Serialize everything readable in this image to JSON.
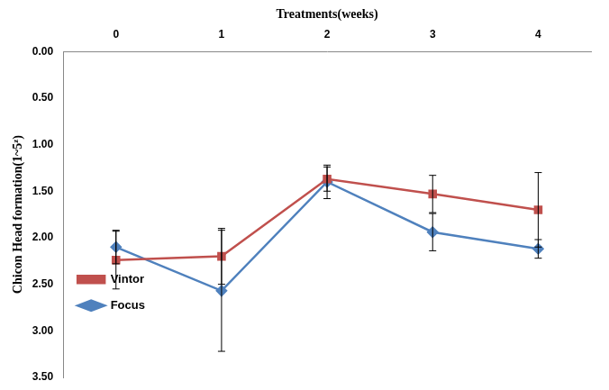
{
  "chart_data": {
    "type": "line",
    "x_label": "Treatments(weeks)",
    "y_label": "Chicon Head formation(1~5ᶻ)",
    "categories": [
      "0",
      "1",
      "2",
      "3",
      "4"
    ],
    "series": [
      {
        "name": "Vintor",
        "color": "#c0504d",
        "marker": "square",
        "values": [
          2.24,
          2.2,
          1.37,
          1.53,
          1.7
        ],
        "errors": [
          0.31,
          0.3,
          0.13,
          0.2,
          0.4
        ]
      },
      {
        "name": "Focus",
        "color": "#4f81bd",
        "marker": "diamond",
        "values": [
          2.1,
          2.57,
          1.4,
          1.94,
          2.12
        ],
        "errors": [
          0.18,
          0.65,
          0.18,
          0.2,
          0.1
        ]
      }
    ],
    "ylim": [
      0,
      3.5
    ],
    "yticks": [
      {
        "value": 0,
        "label": "0.00"
      },
      {
        "value": 0.5,
        "label": "0.50"
      },
      {
        "value": 1,
        "label": "1.00"
      },
      {
        "value": 1.5,
        "label": "1.50"
      },
      {
        "value": 2,
        "label": "2.00"
      },
      {
        "value": 2.5,
        "label": "2.50"
      },
      {
        "value": 3,
        "label": "3.00"
      },
      {
        "value": 3.5,
        "label": "3.50"
      }
    ],
    "grid": false,
    "legend": "top-right"
  }
}
